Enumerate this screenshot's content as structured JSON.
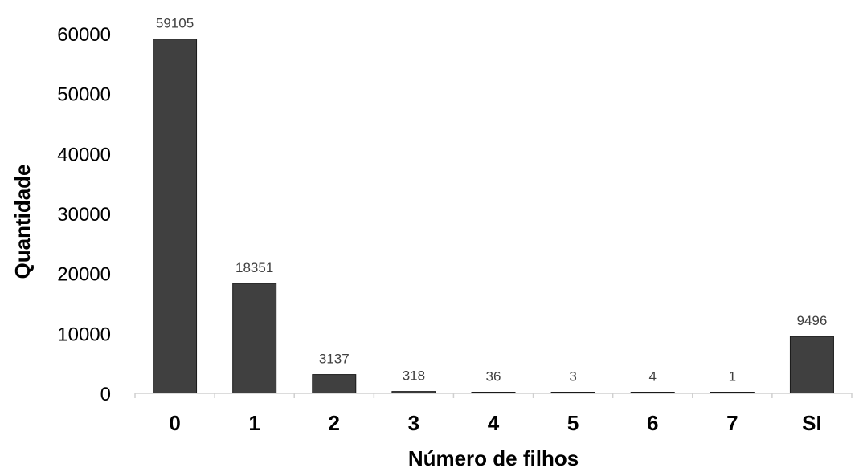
{
  "chart_data": {
    "type": "bar",
    "categories": [
      "0",
      "1",
      "2",
      "3",
      "4",
      "5",
      "6",
      "7",
      "SI"
    ],
    "values": [
      59105,
      18351,
      3137,
      318,
      36,
      3,
      4,
      1,
      9496
    ],
    "value_labels": [
      "59105",
      "18351",
      "3137",
      "318",
      "36",
      "3",
      "4",
      "1",
      "9496"
    ],
    "xlabel": "Número de filhos",
    "ylabel": "Quantidade",
    "ylim": [
      0,
      60000
    ],
    "yticks": [
      0,
      10000,
      20000,
      30000,
      40000,
      50000,
      60000
    ],
    "ytick_labels": [
      "0",
      "10000",
      "20000",
      "30000",
      "40000",
      "50000",
      "60000"
    ],
    "grid": false,
    "legend": "none",
    "bar_color": "#404040"
  }
}
